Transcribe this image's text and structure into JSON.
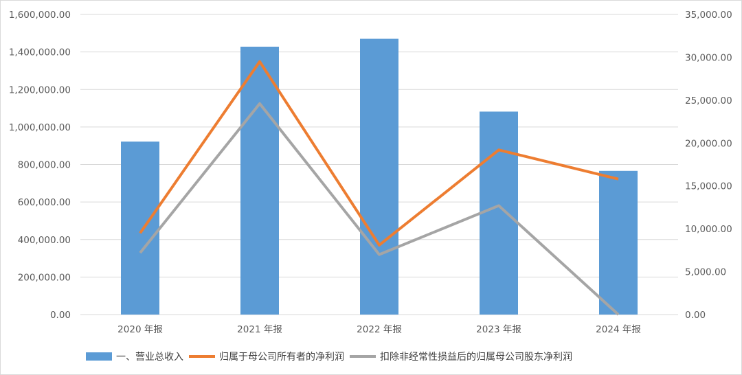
{
  "chart_data": {
    "type": "bar",
    "categories": [
      "2020 年报",
      "2021 年报",
      "2022 年报",
      "2023 年报",
      "2024 年报"
    ],
    "series": [
      {
        "name": "一、营业总收入",
        "type": "bar",
        "axis": "left",
        "color": "#5b9bd5",
        "values": [
          922000,
          1428000,
          1470000,
          1082000,
          766000
        ]
      },
      {
        "name": "归属于母公司所有者的净利润",
        "type": "line",
        "axis": "right",
        "color": "#ed7d31",
        "values": [
          9500,
          29500,
          8100,
          19200,
          15800
        ]
      },
      {
        "name": "扣除非经常性损益后的归属母公司股东净利润",
        "type": "line",
        "axis": "right",
        "color": "#a5a5a5",
        "values": [
          7200,
          24600,
          7000,
          12700,
          0
        ]
      }
    ],
    "left_axis": {
      "ylim": [
        0,
        1600000
      ],
      "ticks": [
        "0.00",
        "200,000.00",
        "400,000.00",
        "600,000.00",
        "800,000.00",
        "1,000,000.00",
        "1,200,000.00",
        "1,400,000.00",
        "1,600,000.00"
      ]
    },
    "right_axis": {
      "ylim": [
        0,
        35000
      ],
      "ticks": [
        "0.00",
        "5,000.00",
        "10,000.00",
        "15,000.00",
        "20,000.00",
        "25,000.00",
        "30,000.00",
        "35,000.00"
      ]
    },
    "grid": true,
    "legend_position": "bottom"
  }
}
